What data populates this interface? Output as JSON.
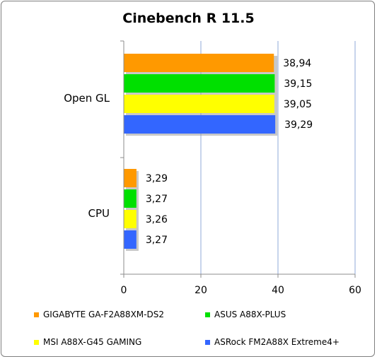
{
  "chart_data": {
    "type": "bar",
    "orientation": "horizontal",
    "title": "Cinebench R 11.5",
    "categories": [
      "Open GL",
      "CPU"
    ],
    "series": [
      {
        "name": "GIGABYTE GA-F2A88XM-DS2",
        "color": "#ff9900",
        "values": [
          38.94,
          3.29
        ],
        "labels": [
          "38,94",
          "3,29"
        ]
      },
      {
        "name": "ASUS A88X-PLUS",
        "color": "#00e000",
        "values": [
          39.15,
          3.27
        ],
        "labels": [
          "39,15",
          "3,27"
        ]
      },
      {
        "name": "MSI A88X-G45 GAMING",
        "color": "#ffff00",
        "values": [
          39.05,
          3.26
        ],
        "labels": [
          "39,05",
          "3,26"
        ]
      },
      {
        "name": "ASRock FM2A88X Extreme4+",
        "color": "#3366ff",
        "values": [
          39.29,
          3.27
        ],
        "labels": [
          "39,29",
          "3,27"
        ]
      }
    ],
    "xlim": [
      0,
      60
    ],
    "xticks": [
      "0",
      "20",
      "40",
      "60"
    ],
    "grid": "vertical",
    "legend": "bottom"
  }
}
